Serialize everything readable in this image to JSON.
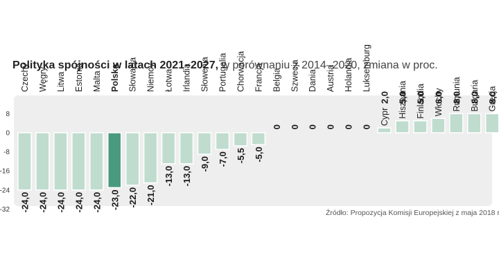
{
  "chart_data": {
    "type": "bar",
    "title": "Polityka spójności w latach 2021–2027,",
    "subtitle": "w porównaniu z 2014–2020, zmiana w proc.",
    "source": "Źródło: Propozycja Komisji Europejskiej  z maja 2018 r.",
    "categories": [
      "Czechy",
      "Węgry",
      "Litwa",
      "Estonia",
      "Malta",
      "Polska",
      "Słowacja",
      "Niemcy",
      "Łotwa",
      "Irlandia",
      "Słowenia",
      "Portugalia",
      "Chorwacja",
      "Francja",
      "Belgia",
      "Szwecja",
      "Dania",
      "Austria",
      "Holandia",
      "Luksemburg",
      "Cypr",
      "Hiszpania",
      "Finlandia",
      "Włochy",
      "Rumunia",
      "Bułgaria",
      "Grecja"
    ],
    "values": [
      -24.0,
      -24.0,
      -24.0,
      -24.0,
      -24.0,
      -23.0,
      -22.0,
      -21.0,
      -13.0,
      -13.0,
      -9.0,
      -7.0,
      -5.5,
      -5.0,
      0,
      0,
      0,
      0,
      0,
      0,
      2.0,
      5.0,
      5.0,
      6.0,
      8.0,
      8.0,
      8.0
    ],
    "value_labels": [
      "-24,0",
      "-24,0",
      "-24,0",
      "-24,0",
      "-24,0",
      "-23,0",
      "-22,0",
      "-21,0",
      "-13,0",
      "-13,0",
      "-9,0",
      "-7,0",
      "-5,5",
      "-5,0",
      "0",
      "0",
      "0",
      "0",
      "0",
      "0",
      "2,0",
      "5,0",
      "5,0",
      "6,0",
      "8,0",
      "8,0",
      "8,0"
    ],
    "highlight": "Polska",
    "yticks": [
      8,
      0,
      -8,
      -16,
      -24,
      -32
    ],
    "ylim": [
      -32,
      8
    ],
    "grid": false,
    "colors": {
      "bar": "#bfdccf",
      "highlight": "#4a9a80",
      "panel": "#eeeeee"
    }
  }
}
